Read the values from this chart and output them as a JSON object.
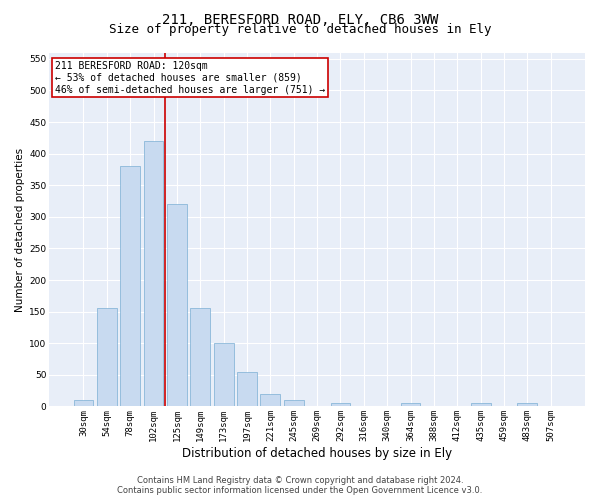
{
  "title1": "211, BERESFORD ROAD, ELY, CB6 3WW",
  "title2": "Size of property relative to detached houses in Ely",
  "xlabel": "Distribution of detached houses by size in Ely",
  "ylabel": "Number of detached properties",
  "categories": [
    "30sqm",
    "54sqm",
    "78sqm",
    "102sqm",
    "125sqm",
    "149sqm",
    "173sqm",
    "197sqm",
    "221sqm",
    "245sqm",
    "269sqm",
    "292sqm",
    "316sqm",
    "340sqm",
    "364sqm",
    "388sqm",
    "412sqm",
    "435sqm",
    "459sqm",
    "483sqm",
    "507sqm"
  ],
  "values": [
    10,
    155,
    380,
    420,
    320,
    155,
    100,
    55,
    20,
    10,
    0,
    5,
    0,
    0,
    5,
    0,
    0,
    5,
    0,
    5,
    0
  ],
  "bar_color": "#c8daf0",
  "bar_edge_color": "#7bafd4",
  "red_line_x": 3.5,
  "annotation_text": "211 BERESFORD ROAD: 120sqm\n← 53% of detached houses are smaller (859)\n46% of semi-detached houses are larger (751) →",
  "annotation_box_color": "white",
  "annotation_box_edge_color": "#cc0000",
  "ylim": [
    0,
    560
  ],
  "yticks": [
    0,
    50,
    100,
    150,
    200,
    250,
    300,
    350,
    400,
    450,
    500,
    550
  ],
  "background_color": "#e8eef8",
  "grid_color": "white",
  "footer1": "Contains HM Land Registry data © Crown copyright and database right 2024.",
  "footer2": "Contains public sector information licensed under the Open Government Licence v3.0.",
  "title1_fontsize": 10,
  "title2_fontsize": 9,
  "xlabel_fontsize": 8.5,
  "ylabel_fontsize": 7.5,
  "tick_fontsize": 6.5,
  "annotation_fontsize": 7,
  "footer_fontsize": 6
}
